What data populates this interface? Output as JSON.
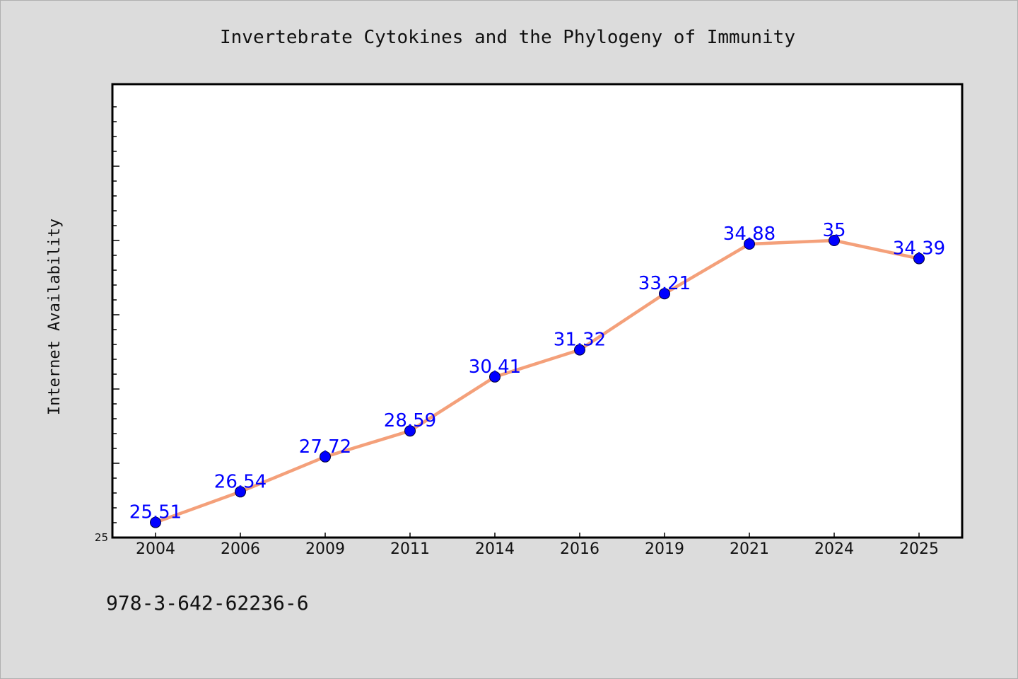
{
  "chart_data": {
    "type": "line",
    "title": "Invertebrate Cytokines and the Phylogeny of Immunity",
    "xlabel": "",
    "ylabel": "Internet Availability",
    "categories": [
      "2004",
      "2006",
      "2009",
      "2011",
      "2014",
      "2016",
      "2019",
      "2021",
      "2024",
      "2025"
    ],
    "series": [
      {
        "values": [
          25.51,
          26.54,
          27.72,
          28.59,
          30.41,
          31.32,
          33.21,
          34.88,
          35,
          34.39
        ],
        "data_labels": [
          "25.51",
          "26.54",
          "27.72",
          "28.59",
          "30.41",
          "31.32",
          "33.21",
          "34.88",
          "35",
          "34.39"
        ]
      }
    ],
    "ylim": [
      25,
      40
    ],
    "y_tick_labels": [
      "25"
    ],
    "grid": false,
    "legend": "none",
    "colors": {
      "line": "#f4a07a",
      "marker": "#0000ff",
      "data_label": "#0000ff",
      "plot_bg": "#ffffff",
      "page_bg": "#dcdcdc"
    }
  },
  "footnote": "978-3-642-62236-6"
}
